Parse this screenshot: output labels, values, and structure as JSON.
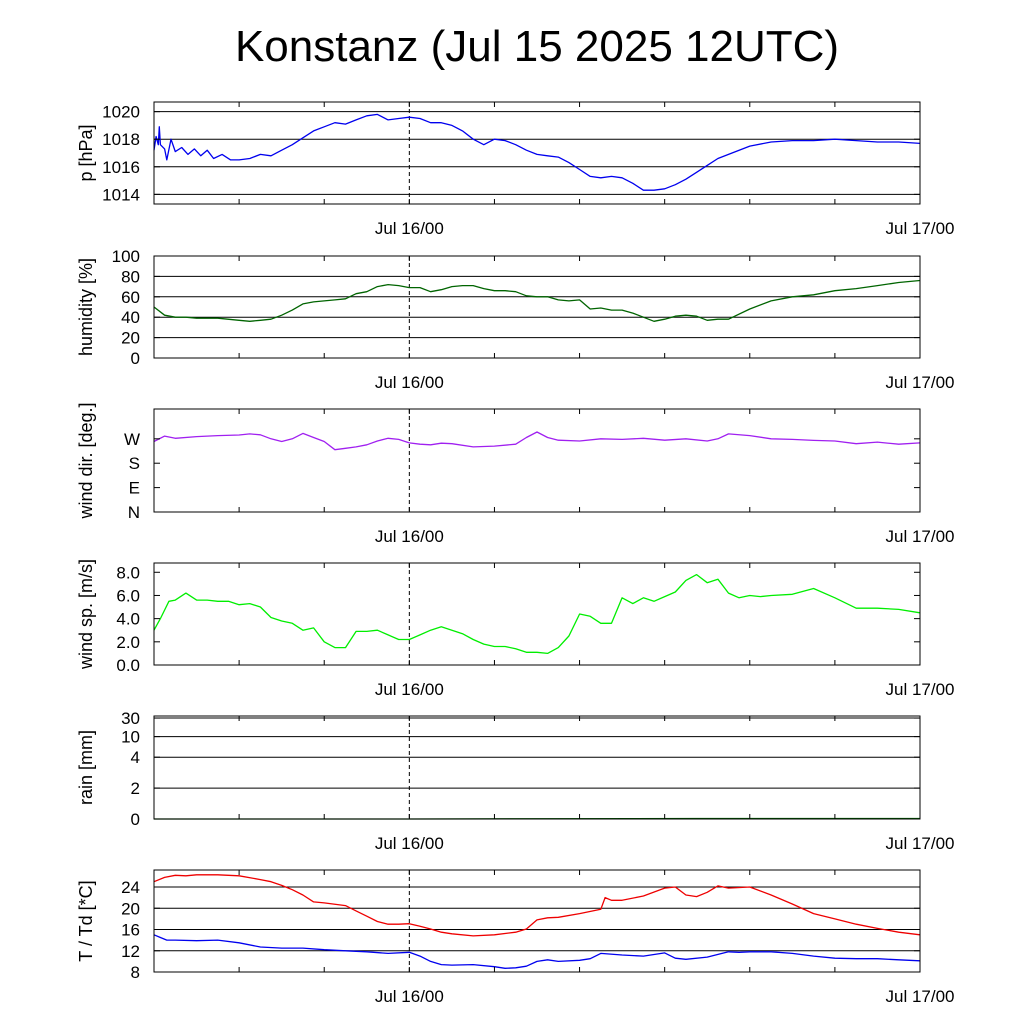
{
  "title": "Konstanz (Jul 15 2025 12UTC)",
  "chart_data": [
    {
      "type": "line",
      "id": "pressure",
      "ylabel": "p [hPa]",
      "x_range": [
        0,
        36
      ],
      "x_ticks": [
        {
          "x": 12,
          "label": "Jul 16/00"
        },
        {
          "x": 36,
          "label": "Jul 17/00"
        }
      ],
      "ylim": [
        1013.3,
        1020.7
      ],
      "yticks": [
        1014,
        1016,
        1018,
        1020
      ],
      "tick_labels": [
        "1014",
        "1016",
        "1018",
        "1020"
      ],
      "grid": true,
      "series": [
        {
          "color": "#0000ee",
          "x": [
            0,
            0.1,
            0.2,
            0.25,
            0.3,
            0.5,
            0.6,
            0.8,
            1.0,
            1.3,
            1.6,
            1.9,
            2.2,
            2.5,
            2.8,
            3.2,
            3.6,
            4.0,
            4.5,
            5.0,
            5.5,
            6.0,
            6.5,
            7.0,
            7.5,
            8.0,
            8.5,
            9.0,
            9.5,
            10.0,
            10.5,
            11.0,
            11.5,
            12.0,
            12.5,
            13.0,
            13.5,
            14.0,
            14.5,
            15.0,
            15.5,
            16.0,
            16.5,
            17.0,
            17.5,
            18.0,
            18.5,
            19.0,
            19.5,
            20.0,
            20.5,
            21.0,
            21.5,
            22.0,
            22.5,
            23.0,
            23.5,
            24.0,
            24.5,
            25.0,
            25.5,
            26.0,
            26.5,
            27.0,
            28.0,
            29.0,
            30.0,
            31.0,
            32.0,
            33.0,
            34.0,
            35.0,
            36.0
          ],
          "y": [
            1017.2,
            1018.2,
            1017.6,
            1018.9,
            1017.6,
            1017.3,
            1016.5,
            1018.0,
            1017.1,
            1017.4,
            1016.9,
            1017.3,
            1016.8,
            1017.2,
            1016.6,
            1016.9,
            1016.5,
            1016.5,
            1016.6,
            1016.9,
            1016.8,
            1017.2,
            1017.6,
            1018.1,
            1018.6,
            1018.9,
            1019.2,
            1019.1,
            1019.4,
            1019.7,
            1019.8,
            1019.4,
            1019.5,
            1019.6,
            1019.5,
            1019.2,
            1019.2,
            1019.0,
            1018.6,
            1018.0,
            1017.6,
            1018.0,
            1017.9,
            1017.6,
            1017.2,
            1016.9,
            1016.8,
            1016.7,
            1016.3,
            1015.8,
            1015.3,
            1015.2,
            1015.3,
            1015.2,
            1014.8,
            1014.3,
            1014.3,
            1014.4,
            1014.7,
            1015.1,
            1015.6,
            1016.1,
            1016.6,
            1016.9,
            1017.5,
            1017.8,
            1017.9,
            1017.9,
            1018.0,
            1017.9,
            1017.8,
            1017.8,
            1017.7
          ]
        }
      ]
    },
    {
      "type": "line",
      "id": "humidity",
      "ylabel": "humidity [%]",
      "x_range": [
        0,
        36
      ],
      "x_ticks": [
        {
          "x": 12,
          "label": "Jul 16/00"
        },
        {
          "x": 36,
          "label": "Jul 17/00"
        }
      ],
      "ylim": [
        0,
        100
      ],
      "yticks": [
        0,
        20,
        40,
        60,
        80,
        100
      ],
      "tick_labels": [
        "0",
        "20",
        "40",
        "60",
        "80",
        "100"
      ],
      "grid": true,
      "series": [
        {
          "color": "#006400",
          "x": [
            0,
            0.5,
            1.0,
            1.5,
            2.0,
            3.0,
            4.0,
            4.5,
            5.0,
            5.5,
            6.0,
            6.5,
            7.0,
            7.5,
            8.0,
            8.5,
            9.0,
            9.5,
            10.0,
            10.5,
            11.0,
            11.5,
            12.0,
            12.5,
            13.0,
            13.5,
            14.0,
            14.5,
            15.0,
            15.5,
            16.0,
            16.5,
            17.0,
            17.5,
            18.0,
            18.5,
            19.0,
            19.5,
            20.0,
            20.5,
            21.0,
            21.5,
            22.0,
            22.5,
            23.0,
            23.5,
            24.0,
            24.5,
            25.0,
            25.5,
            26.0,
            26.5,
            27.0,
            28.0,
            29.0,
            30.0,
            31.0,
            32.0,
            33.0,
            34.0,
            35.0,
            36.0
          ],
          "y": [
            50,
            42,
            40,
            40,
            39,
            39,
            37,
            36,
            37,
            38,
            42,
            47,
            53,
            55,
            56,
            57,
            58,
            63,
            65,
            70,
            72,
            71,
            69,
            69,
            65,
            67,
            70,
            71,
            71,
            68,
            66,
            66,
            65,
            61,
            60,
            60,
            57,
            56,
            57,
            48,
            49,
            47,
            47,
            44,
            40,
            36,
            38,
            41,
            42,
            41,
            37,
            38,
            38,
            48,
            56,
            60,
            62,
            66,
            68,
            71,
            74,
            76
          ]
        }
      ]
    },
    {
      "type": "line",
      "id": "wind-direction",
      "ylabel": "wind dir. [deg.]",
      "x_range": [
        0,
        36
      ],
      "x_ticks": [
        {
          "x": 12,
          "label": "Jul 16/00"
        },
        {
          "x": 36,
          "label": "Jul 17/00"
        }
      ],
      "ylim": [
        0,
        380
      ],
      "yticks": [
        0,
        90,
        180,
        270
      ],
      "tick_labels": [
        "N",
        "E",
        "S",
        "W"
      ],
      "grid": false,
      "series": [
        {
          "color": "#a020f0",
          "x": [
            0,
            0.5,
            1.0,
            2.0,
            3.0,
            4.0,
            4.5,
            5.0,
            5.5,
            6.0,
            6.5,
            7.0,
            7.5,
            8.0,
            8.5,
            9.0,
            9.5,
            10.0,
            10.5,
            11.0,
            11.5,
            12.0,
            12.5,
            13.0,
            13.5,
            14.0,
            15.0,
            16.0,
            17.0,
            17.5,
            18.0,
            18.5,
            19.0,
            20.0,
            21.0,
            22.0,
            23.0,
            24.0,
            25.0,
            26.0,
            26.5,
            27.0,
            28.0,
            29.0,
            30.0,
            31.0,
            32.0,
            33.0,
            34.0,
            35.0,
            36.0
          ],
          "y": [
            260,
            280,
            272,
            278,
            282,
            284,
            288,
            285,
            270,
            260,
            270,
            290,
            275,
            260,
            230,
            235,
            240,
            248,
            262,
            272,
            268,
            255,
            250,
            248,
            254,
            252,
            240,
            243,
            250,
            275,
            295,
            275,
            265,
            262,
            270,
            268,
            272,
            265,
            270,
            262,
            270,
            288,
            282,
            270,
            268,
            264,
            262,
            252,
            258,
            250,
            255
          ]
        }
      ]
    },
    {
      "type": "line",
      "id": "wind-speed",
      "ylabel": "wind sp. [m/s]",
      "x_range": [
        0,
        36
      ],
      "x_ticks": [
        {
          "x": 12,
          "label": "Jul 16/00"
        },
        {
          "x": 36,
          "label": "Jul 17/00"
        }
      ],
      "ylim": [
        0,
        8.8
      ],
      "yticks": [
        0,
        2,
        4,
        6,
        8
      ],
      "tick_labels": [
        "0.0",
        "2.0",
        "4.0",
        "6.0",
        "8.0"
      ],
      "grid": false,
      "series": [
        {
          "color": "#00ee00",
          "x": [
            0,
            0.3,
            0.7,
            1.0,
            1.5,
            2.0,
            2.5,
            3.0,
            3.5,
            4.0,
            4.5,
            5.0,
            5.5,
            6.0,
            6.5,
            7.0,
            7.5,
            8.0,
            8.5,
            9.0,
            9.5,
            10.0,
            10.5,
            11.0,
            11.5,
            12.0,
            12.5,
            13.0,
            13.5,
            14.0,
            14.5,
            15.0,
            15.5,
            16.0,
            16.5,
            17.0,
            17.5,
            18.0,
            18.5,
            19.0,
            19.5,
            20.0,
            20.5,
            21.0,
            21.5,
            22.0,
            22.5,
            23.0,
            23.5,
            24.0,
            24.5,
            25.0,
            25.5,
            26.0,
            26.5,
            27.0,
            27.5,
            28.0,
            28.5,
            29.0,
            30.0,
            31.0,
            32.0,
            33.0,
            34.0,
            35.0,
            36.0
          ],
          "y": [
            3.0,
            4.0,
            5.5,
            5.6,
            6.2,
            5.6,
            5.6,
            5.5,
            5.5,
            5.2,
            5.3,
            5.0,
            4.1,
            3.8,
            3.6,
            3.0,
            3.2,
            2.0,
            1.5,
            1.5,
            2.9,
            2.9,
            3.0,
            2.6,
            2.2,
            2.2,
            2.6,
            3.0,
            3.3,
            3.0,
            2.7,
            2.2,
            1.8,
            1.6,
            1.6,
            1.4,
            1.1,
            1.1,
            1.0,
            1.5,
            2.5,
            4.4,
            4.2,
            3.6,
            3.6,
            5.8,
            5.3,
            5.8,
            5.5,
            5.9,
            6.3,
            7.3,
            7.8,
            7.1,
            7.4,
            6.2,
            5.8,
            6.0,
            5.9,
            6.0,
            6.1,
            6.6,
            5.8,
            4.9,
            4.9,
            4.8,
            4.5
          ]
        }
      ]
    },
    {
      "type": "line",
      "id": "rain",
      "ylabel": "rain [mm]",
      "x_range": [
        0,
        36
      ],
      "x_ticks": [
        {
          "x": 12,
          "label": "Jul 16/00"
        },
        {
          "x": 36,
          "label": "Jul 17/00"
        }
      ],
      "ylim": [
        0,
        100
      ],
      "yticks": [
        0,
        30,
        60,
        80,
        98
      ],
      "tick_labels": [
        "0",
        "2",
        "4",
        "10",
        "30"
      ],
      "grid": true,
      "series": [
        {
          "color": "#006400",
          "x": [
            0,
            12,
            25.5,
            36
          ],
          "y": [
            0,
            0,
            0.5,
            0.5
          ]
        }
      ]
    },
    {
      "type": "line",
      "id": "temperature",
      "ylabel": "T / Td [*C]",
      "x_range": [
        0,
        36
      ],
      "x_ticks": [
        {
          "x": 12,
          "label": "Jul 16/00"
        },
        {
          "x": 36,
          "label": "Jul 17/00"
        }
      ],
      "ylim": [
        8,
        27.2
      ],
      "yticks": [
        8,
        12,
        16,
        20,
        24
      ],
      "tick_labels": [
        "8",
        "12",
        "16",
        "20",
        "24"
      ],
      "grid": true,
      "series": [
        {
          "name": "T",
          "color": "#ee0000",
          "x": [
            0,
            0.5,
            1.0,
            1.5,
            2.0,
            3.0,
            4.0,
            5.0,
            5.5,
            6.0,
            6.5,
            7.0,
            7.5,
            8.0,
            9.0,
            9.5,
            10.0,
            10.5,
            11.0,
            11.5,
            12.0,
            12.5,
            13.0,
            13.5,
            14.0,
            15.0,
            16.0,
            17.0,
            17.5,
            18.0,
            18.5,
            19.0,
            20.0,
            21.0,
            21.2,
            21.5,
            22.0,
            23.0,
            24.0,
            24.5,
            25.0,
            25.5,
            26.0,
            26.5,
            27.0,
            28.0,
            29.0,
            30.0,
            31.0,
            32.0,
            33.0,
            34.0,
            35.0,
            36.0
          ],
          "y": [
            25.0,
            25.8,
            26.2,
            26.1,
            26.3,
            26.3,
            26.1,
            25.4,
            25.0,
            24.3,
            23.5,
            22.5,
            21.2,
            21.0,
            20.5,
            19.5,
            18.5,
            17.5,
            17.0,
            17.0,
            17.1,
            16.6,
            16.1,
            15.5,
            15.2,
            14.8,
            15.0,
            15.5,
            16.1,
            17.8,
            18.2,
            18.3,
            19.0,
            19.8,
            22.0,
            21.5,
            21.5,
            22.3,
            23.8,
            24.0,
            22.5,
            22.2,
            23.0,
            24.2,
            23.8,
            24.0,
            22.5,
            20.8,
            19.0,
            18.0,
            17.0,
            16.2,
            15.5,
            15.0
          ]
        },
        {
          "name": "Td",
          "color": "#0000ee",
          "x": [
            0,
            0.3,
            0.6,
            1.0,
            2.0,
            3.0,
            4.0,
            5.0,
            6.0,
            7.0,
            8.0,
            9.0,
            10.0,
            11.0,
            12.0,
            12.5,
            13.0,
            13.5,
            14.0,
            15.0,
            16.0,
            16.5,
            17.0,
            17.5,
            18.0,
            18.5,
            19.0,
            20.0,
            20.5,
            21.0,
            22.0,
            23.0,
            24.0,
            24.5,
            25.0,
            26.0,
            27.0,
            27.5,
            28.0,
            29.0,
            30.0,
            31.0,
            32.0,
            33.0,
            34.0,
            35.0,
            36.0
          ],
          "y": [
            15.0,
            14.5,
            14.0,
            14.0,
            13.9,
            14.0,
            13.5,
            12.7,
            12.5,
            12.5,
            12.2,
            12.0,
            11.8,
            11.5,
            11.7,
            11.0,
            10.0,
            9.4,
            9.3,
            9.4,
            9.0,
            8.7,
            8.8,
            9.1,
            10.0,
            10.3,
            10.0,
            10.2,
            10.5,
            11.5,
            11.2,
            11.0,
            11.6,
            10.6,
            10.4,
            10.8,
            11.8,
            11.7,
            11.8,
            11.8,
            11.5,
            11.0,
            10.6,
            10.5,
            10.5,
            10.3,
            10.1
          ]
        }
      ]
    }
  ]
}
